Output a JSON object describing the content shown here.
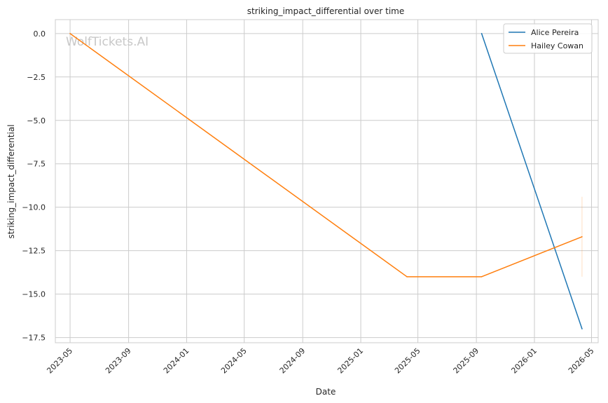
{
  "chart_data": {
    "type": "line",
    "title": "striking_impact_differential over time",
    "xlabel": "Date",
    "ylabel": "striking_impact_differential",
    "watermark": "WolfTickets.AI",
    "x_axis_type": "date",
    "xlim": [
      "2023-03-31",
      "2026-05-15"
    ],
    "ylim": [
      -17.8,
      0.8
    ],
    "x_ticks": [
      "2023-05",
      "2023-09",
      "2024-01",
      "2024-05",
      "2024-09",
      "2025-01",
      "2025-05",
      "2025-09",
      "2026-01",
      "2026-05"
    ],
    "y_ticks": [
      0.0,
      -2.5,
      -5.0,
      -7.5,
      -10.0,
      -12.5,
      -15.0,
      -17.5
    ],
    "y_tick_labels": [
      "0.0",
      "−2.5",
      "−5.0",
      "−7.5",
      "−10.0",
      "−12.5",
      "−15.0",
      "−17.5"
    ],
    "grid": true,
    "legend_position": "top-right",
    "series": [
      {
        "name": "Alice Pereira",
        "color": "#1f77b4",
        "points": [
          {
            "x": "2025-09-12",
            "y": 0.0
          },
          {
            "x": "2026-04-11",
            "y": -17.0
          }
        ]
      },
      {
        "name": "Hailey Cowan",
        "color": "#ff7f0e",
        "points": [
          {
            "x": "2023-05-01",
            "y": 0.0
          },
          {
            "x": "2025-04-08",
            "y": -14.0
          },
          {
            "x": "2025-09-12",
            "y": -14.0
          },
          {
            "x": "2026-04-11",
            "y": -11.7
          }
        ],
        "error_band": {
          "x": "2026-04-11",
          "low": -14.0,
          "high": -9.4
        }
      }
    ]
  }
}
